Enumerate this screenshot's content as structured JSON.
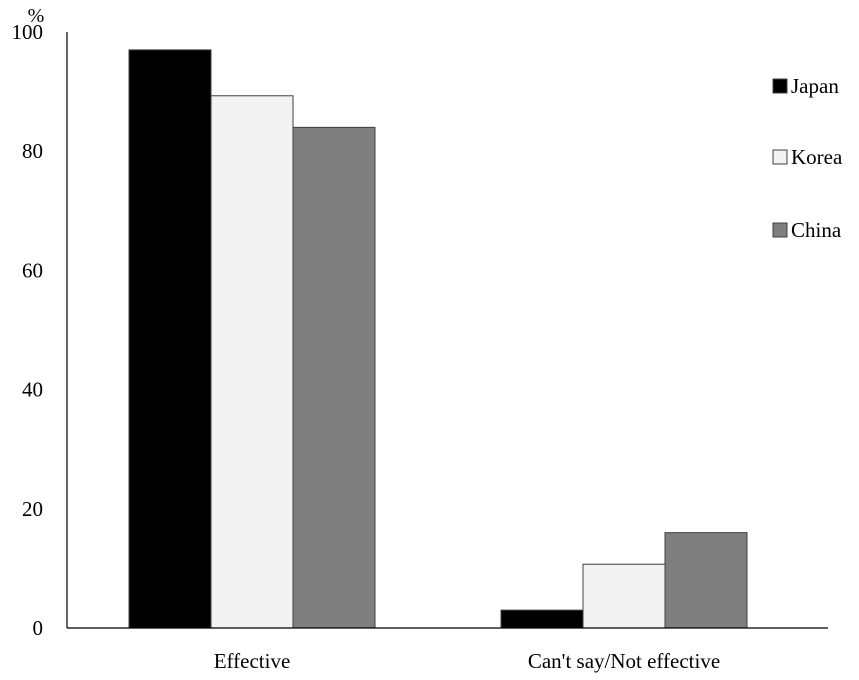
{
  "chart_data": {
    "type": "bar",
    "categories": [
      "Effective",
      "Can't say/Not effective"
    ],
    "series": [
      {
        "name": "Japan",
        "values": [
          97,
          3
        ],
        "color": "#000000"
      },
      {
        "name": "Korea",
        "values": [
          89.3,
          10.7
        ],
        "color": "#f2f2f2"
      },
      {
        "name": "China",
        "values": [
          84,
          16
        ],
        "color": "#7f7f7f"
      }
    ],
    "ylabel": "%",
    "ylim": [
      0,
      100
    ],
    "yticks": [
      "0",
      "20",
      "40",
      "60",
      "80",
      "100"
    ],
    "legend_position": "right",
    "grid": false
  }
}
